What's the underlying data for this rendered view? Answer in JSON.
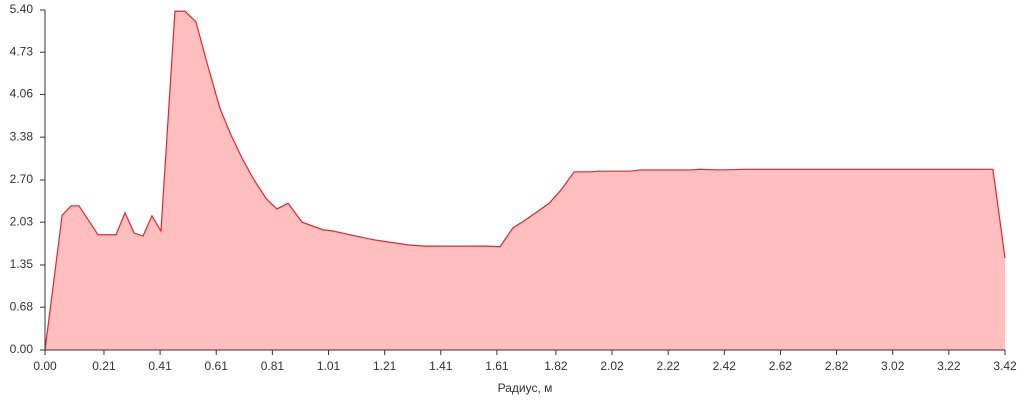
{
  "chart_data": {
    "type": "area",
    "xlabel": "Радиус, м",
    "x": [
      0,
      0.061,
      0.093,
      0.121,
      0.189,
      0.253,
      0.285,
      0.317,
      0.349,
      0.381,
      0.413,
      0.463,
      0.499,
      0.538,
      0.574,
      0.623,
      0.663,
      0.705,
      0.745,
      0.787,
      0.826,
      0.866,
      0.916,
      0.99,
      1.026,
      1.087,
      1.129,
      1.172,
      1.293,
      1.354,
      1.575,
      1.621,
      1.667,
      1.71,
      1.796,
      1.838,
      1.885,
      1.942,
      1.977,
      2.084,
      2.12,
      2.298,
      2.333,
      2.405,
      2.494,
      3.377,
      3.42
    ],
    "series": [
      {
        "color": "#e8242e",
        "fill": "#ffbfbf",
        "values": [
          0,
          2.14,
          2.29,
          2.29,
          1.83,
          1.83,
          2.18,
          1.86,
          1.81,
          2.13,
          1.89,
          5.38,
          5.38,
          5.21,
          4.61,
          3.84,
          3.41,
          3.02,
          2.7,
          2.41,
          2.24,
          2.33,
          2.03,
          1.91,
          1.89,
          1.83,
          1.79,
          1.75,
          1.67,
          1.65,
          1.65,
          1.64,
          1.94,
          2.06,
          2.33,
          2.54,
          2.83,
          2.83,
          2.84,
          2.84,
          2.86,
          2.86,
          2.87,
          2.86,
          2.87,
          2.87,
          1.46
        ]
      }
    ],
    "xlim": [
      0,
      3.42
    ],
    "xticks": [
      {
        "value": 0,
        "label": "0.00"
      },
      0.21,
      0.41,
      0.61,
      0.81,
      1.01,
      1.21,
      1.41,
      1.61,
      1.82,
      2.02,
      2.22,
      2.42,
      2.62,
      2.82,
      3.02,
      3.22,
      3.42
    ],
    "ylim": [
      0,
      5.4
    ],
    "yticks": [
      {
        "value": 0,
        "label": "0.00"
      },
      0.68,
      1.35,
      2.03,
      {
        "value": 2.7,
        "label": "2.70"
      },
      3.38,
      4.06,
      4.73,
      {
        "value": 5.4,
        "label": "5.40"
      }
    ]
  }
}
